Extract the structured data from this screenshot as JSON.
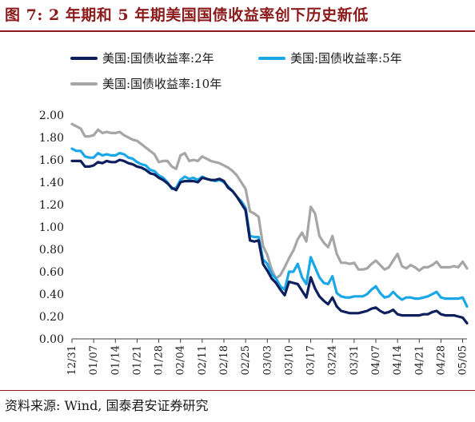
{
  "figure": {
    "title": "图 7:  2 年期和 5 年期美国国债收益率创下历史新低",
    "source": "资料来源:  Wind,  国泰君安证券研究"
  },
  "chart_data": {
    "type": "line",
    "title": "图 7:  2 年期和 5 年期美国国债收益率创下历史新低",
    "xlabel": "",
    "ylabel": "",
    "ylim": [
      0.0,
      2.0
    ],
    "yticks": [
      "0.00",
      "0.20",
      "0.40",
      "0.60",
      "0.80",
      "1.00",
      "1.20",
      "1.40",
      "1.60",
      "1.80",
      "2.00"
    ],
    "grid": false,
    "legend_position": "top",
    "x_tick_labels": [
      "12/31",
      "01/07",
      "01/14",
      "01/21",
      "01/28",
      "02/04",
      "02/11",
      "02/18",
      "02/25",
      "03/03",
      "03/10",
      "03/17",
      "03/24",
      "03/31",
      "04/07",
      "04/14",
      "04/21",
      "04/28",
      "05/05"
    ],
    "x_tick_index": [
      0,
      5,
      10,
      15,
      20,
      25,
      30,
      35,
      40,
      45,
      50,
      55,
      60,
      65,
      70,
      75,
      80,
      85,
      90
    ],
    "series": [
      {
        "name": "美国:国债收益率:2年",
        "color": "#0d1f5c",
        "values": [
          1.59,
          1.59,
          1.59,
          1.54,
          1.54,
          1.55,
          1.58,
          1.57,
          1.59,
          1.58,
          1.58,
          1.6,
          1.59,
          1.57,
          1.56,
          1.54,
          1.53,
          1.51,
          1.48,
          1.47,
          1.44,
          1.42,
          1.39,
          1.35,
          1.33,
          1.4,
          1.41,
          1.41,
          1.41,
          1.4,
          1.44,
          1.43,
          1.42,
          1.42,
          1.43,
          1.41,
          1.35,
          1.32,
          1.27,
          1.21,
          1.15,
          0.88,
          0.87,
          0.88,
          0.67,
          0.61,
          0.54,
          0.5,
          0.44,
          0.39,
          0.51,
          0.5,
          0.49,
          0.43,
          0.37,
          0.55,
          0.45,
          0.38,
          0.34,
          0.31,
          0.37,
          0.29,
          0.25,
          0.24,
          0.23,
          0.23,
          0.23,
          0.24,
          0.25,
          0.27,
          0.28,
          0.25,
          0.23,
          0.24,
          0.26,
          0.22,
          0.21,
          0.21,
          0.21,
          0.21,
          0.21,
          0.22,
          0.22,
          0.24,
          0.25,
          0.22,
          0.21,
          0.21,
          0.21,
          0.2,
          0.19,
          0.14
        ]
      },
      {
        "name": "美国:国债收益率:5年",
        "color": "#1aa7e8",
        "values": [
          1.7,
          1.68,
          1.68,
          1.63,
          1.62,
          1.62,
          1.66,
          1.64,
          1.65,
          1.64,
          1.64,
          1.66,
          1.65,
          1.62,
          1.61,
          1.58,
          1.56,
          1.55,
          1.51,
          1.5,
          1.46,
          1.44,
          1.4,
          1.34,
          1.35,
          1.42,
          1.45,
          1.43,
          1.44,
          1.42,
          1.45,
          1.43,
          1.42,
          1.41,
          1.42,
          1.4,
          1.36,
          1.32,
          1.27,
          1.23,
          1.17,
          0.92,
          0.91,
          0.91,
          0.71,
          0.67,
          0.58,
          0.54,
          0.47,
          0.44,
          0.6,
          0.6,
          0.67,
          0.55,
          0.49,
          0.73,
          0.64,
          0.55,
          0.5,
          0.49,
          0.56,
          0.41,
          0.38,
          0.37,
          0.37,
          0.38,
          0.38,
          0.38,
          0.4,
          0.44,
          0.47,
          0.41,
          0.37,
          0.38,
          0.42,
          0.38,
          0.35,
          0.37,
          0.37,
          0.36,
          0.36,
          0.37,
          0.38,
          0.4,
          0.42,
          0.37,
          0.36,
          0.36,
          0.36,
          0.36,
          0.37,
          0.29
        ]
      },
      {
        "name": "美国:国债收益率:10年",
        "color": "#a6a6a6",
        "values": [
          1.92,
          1.9,
          1.88,
          1.81,
          1.81,
          1.82,
          1.87,
          1.84,
          1.85,
          1.84,
          1.84,
          1.85,
          1.82,
          1.8,
          1.78,
          1.77,
          1.74,
          1.71,
          1.68,
          1.65,
          1.58,
          1.59,
          1.59,
          1.54,
          1.52,
          1.64,
          1.66,
          1.59,
          1.6,
          1.59,
          1.63,
          1.61,
          1.59,
          1.58,
          1.57,
          1.55,
          1.53,
          1.5,
          1.46,
          1.4,
          1.34,
          1.14,
          1.12,
          1.09,
          0.83,
          0.75,
          0.62,
          0.54,
          0.57,
          0.64,
          0.72,
          0.79,
          0.89,
          0.95,
          0.87,
          1.18,
          1.12,
          0.92,
          0.86,
          0.82,
          0.92,
          0.76,
          0.68,
          0.68,
          0.67,
          0.68,
          0.62,
          0.62,
          0.63,
          0.67,
          0.7,
          0.66,
          0.62,
          0.64,
          0.7,
          0.76,
          0.65,
          0.63,
          0.66,
          0.64,
          0.61,
          0.64,
          0.64,
          0.66,
          0.69,
          0.64,
          0.64,
          0.64,
          0.65,
          0.64,
          0.69,
          0.63
        ]
      }
    ]
  }
}
